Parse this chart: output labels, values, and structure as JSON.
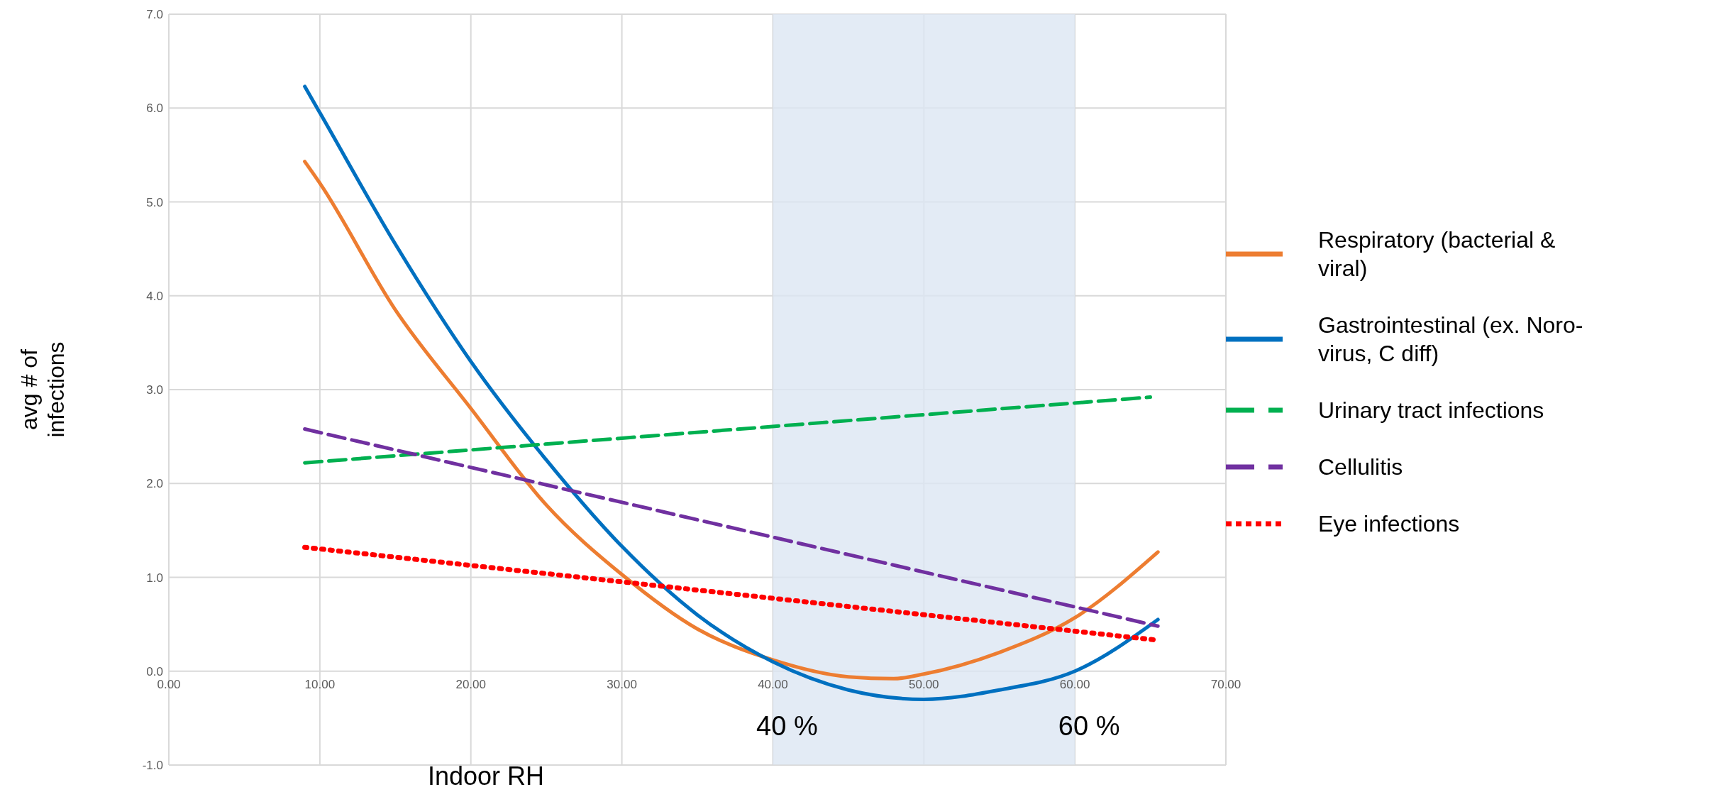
{
  "chart_data": {
    "type": "line",
    "xlabel": "Indoor RH",
    "ylabel": "avg # of infections",
    "xlim": [
      0,
      70
    ],
    "ylim": [
      -1,
      7
    ],
    "xticks": [
      {
        "value": 0,
        "label": "0.00"
      },
      {
        "value": 10,
        "label": "10.00"
      },
      {
        "value": 20,
        "label": "20.00"
      },
      {
        "value": 30,
        "label": "30.00"
      },
      {
        "value": 40,
        "label": "40.00"
      },
      {
        "value": 50,
        "label": "50.00"
      },
      {
        "value": 60,
        "label": "60.00"
      },
      {
        "value": 70,
        "label": "70.00"
      }
    ],
    "yticks": [
      {
        "value": -1,
        "label": "-1.0"
      },
      {
        "value": 0,
        "label": "0.0"
      },
      {
        "value": 1,
        "label": "1.0"
      },
      {
        "value": 2,
        "label": "2.0"
      },
      {
        "value": 3,
        "label": "3.0"
      },
      {
        "value": 4,
        "label": "4.0"
      },
      {
        "value": 5,
        "label": "5.0"
      },
      {
        "value": 6,
        "label": "6.0"
      },
      {
        "value": 7,
        "label": "7.0"
      }
    ],
    "grid": true,
    "legend": "right",
    "marker": "none",
    "bands": [
      {
        "axis": "x",
        "from": 40,
        "to": 60,
        "color": "#dce6f2"
      }
    ],
    "annotations": [
      {
        "text": "40 %",
        "x": 40
      },
      {
        "text": "60 %",
        "x": 60
      }
    ],
    "series": [
      {
        "name": "Respiratory (bacterial & viral)",
        "color": "#ed7d31",
        "line_style": "solid",
        "x": [
          9,
          10,
          15,
          20,
          25,
          30,
          35,
          40,
          45,
          48,
          50,
          55,
          60,
          65.5
        ],
        "values": [
          5.43,
          5.2,
          3.85,
          2.8,
          1.77,
          1.03,
          0.45,
          0.12,
          -0.06,
          -0.08,
          -0.03,
          0.2,
          0.57,
          1.27
        ]
      },
      {
        "name": "Gastrointestinal (ex. Noro-virus, C diff)",
        "color": "#0070c0",
        "line_style": "solid",
        "x": [
          9,
          10,
          15,
          20,
          25,
          30,
          35,
          40,
          45,
          50,
          55,
          60,
          65.5
        ],
        "values": [
          6.23,
          5.95,
          4.55,
          3.3,
          2.25,
          1.33,
          0.6,
          0.1,
          -0.2,
          -0.3,
          -0.2,
          0.0,
          0.55
        ]
      },
      {
        "name": "Urinary tract infections",
        "color": "#00b050",
        "line_style": "dashed",
        "x": [
          9,
          65
        ],
        "values": [
          2.22,
          2.92
        ]
      },
      {
        "name": "Cellulitis",
        "color": "#7030a0",
        "line_style": "dashed",
        "x": [
          9,
          65.5
        ],
        "values": [
          2.58,
          0.48
        ]
      },
      {
        "name": "Eye infections",
        "color": "#ff0000",
        "line_style": "dotted",
        "x": [
          9,
          65.5
        ],
        "values": [
          1.32,
          0.33
        ]
      }
    ]
  }
}
